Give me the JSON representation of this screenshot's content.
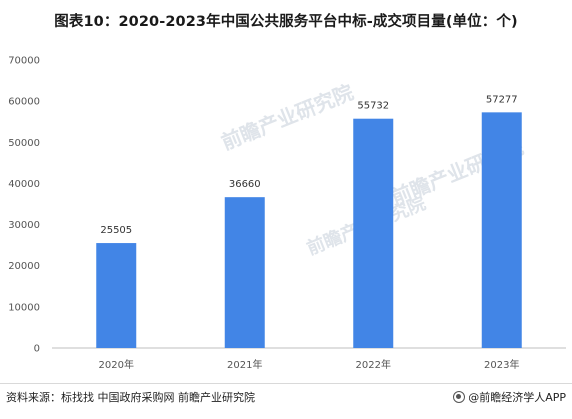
{
  "chart_data": {
    "type": "bar",
    "title": "图表10：2020-2023年中国公共服务平台中标-成交项目量(单位：个)",
    "categories": [
      "2020年",
      "2021年",
      "2022年",
      "2023年"
    ],
    "values": [
      25505,
      36660,
      55732,
      57277
    ],
    "data_labels": [
      "25505",
      "36660",
      "55732",
      "57277"
    ],
    "y_ticks": [
      0,
      10000,
      20000,
      30000,
      40000,
      50000,
      60000,
      70000
    ],
    "ylim": [
      0,
      70000
    ],
    "xlabel": "",
    "ylabel": "",
    "grid": false,
    "bar_color": "#4285e6"
  },
  "watermark": {
    "text": "前瞻产业研究院"
  },
  "footer": {
    "source": "资料来源：标找找 中国政府采购网 前瞻产业研究院",
    "brand": "@前瞻经济学人APP"
  }
}
